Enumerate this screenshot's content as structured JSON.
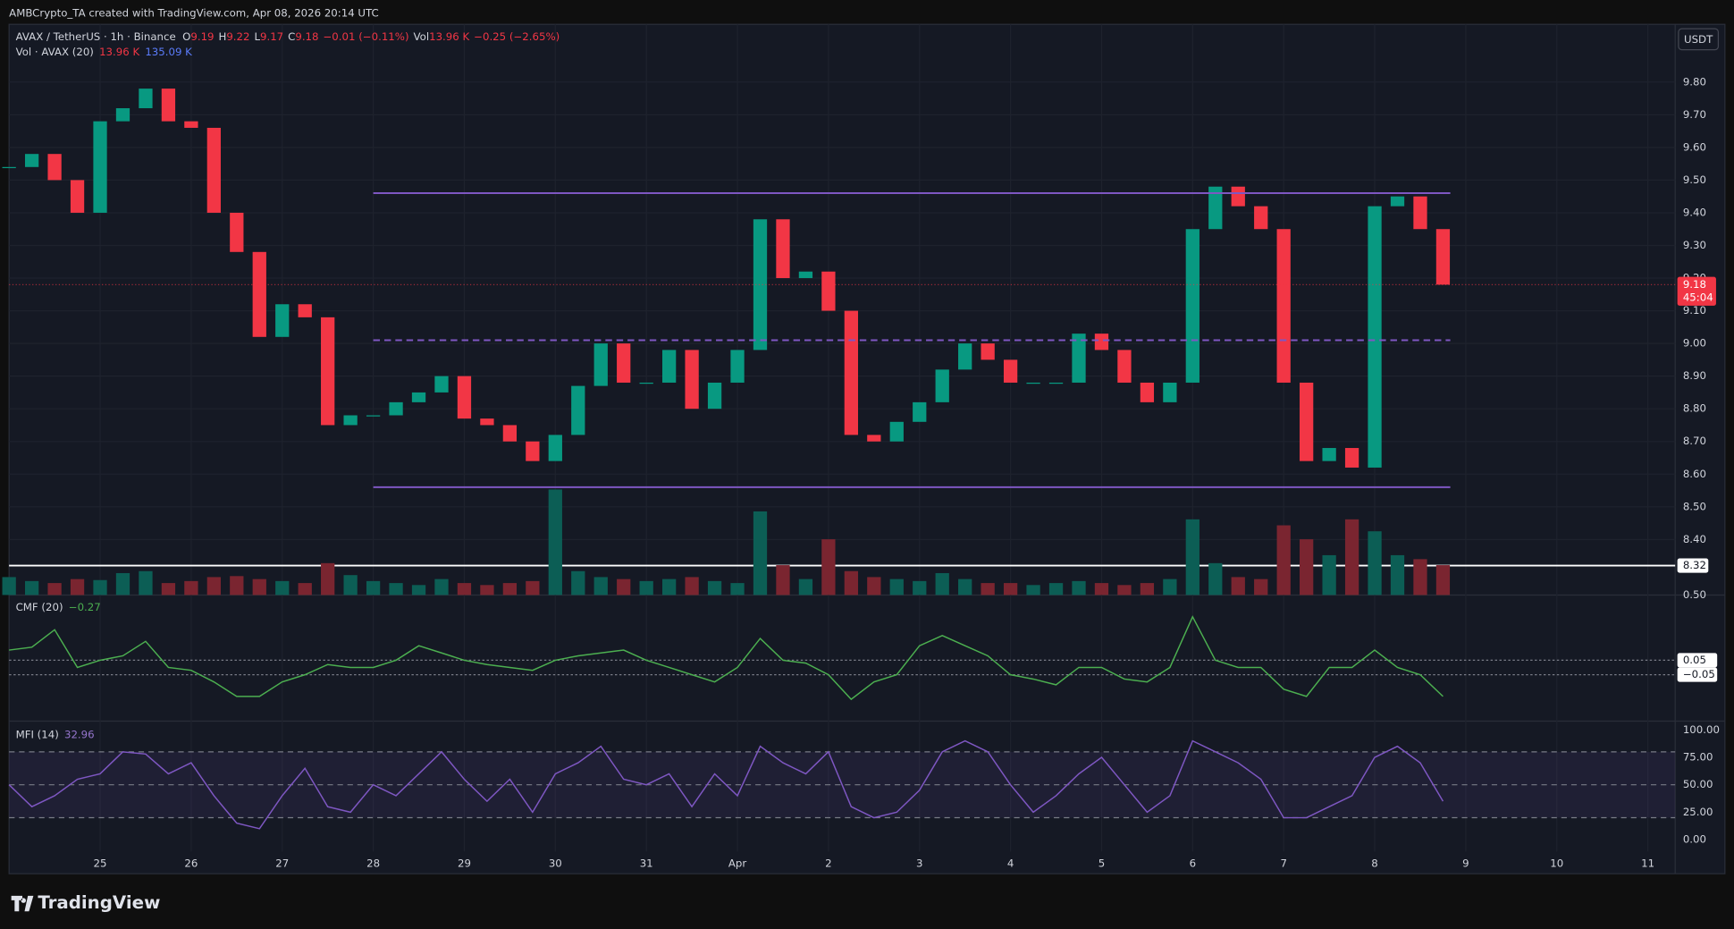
{
  "header": {
    "credit": "AMBCrypto_TA created with TradingView.com, Apr 08, 2026 20:14 UTC",
    "currency_button": "USDT",
    "brand": "TradingView"
  },
  "legend": {
    "symbol": "AVAX / TetherUS · 1h · Binance",
    "o_label": "O",
    "o": "9.19",
    "h_label": "H",
    "h": "9.22",
    "l_label": "L",
    "l": "9.17",
    "c_label": "C",
    "c": "9.18",
    "change": "−0.01 (−0.11%)",
    "vol_label": "Vol",
    "vol": "13.96 K",
    "vol_change": "−0.25 (−2.65%)",
    "vol_name": "Vol · AVAX (20)",
    "vol_value": "13.96 K",
    "vol_ma": "135.09 K",
    "cmf_name": "CMF (20)",
    "cmf_value": "−0.27",
    "mfi_name": "MFI (14)",
    "mfi_value": "32.96"
  },
  "chart_data": [
    {
      "type": "candlestick",
      "up_color": "#089981",
      "down_color": "#f23645",
      "x": [
        24,
        24.25,
        24.5,
        24.75,
        25,
        25.25,
        25.5,
        25.75,
        26,
        26.25,
        26.5,
        26.75,
        27,
        27.25,
        27.5,
        27.75,
        28,
        28.25,
        28.5,
        28.75,
        29,
        29.25,
        29.5,
        29.75,
        30,
        30.25,
        30.5,
        30.75,
        31,
        31.25,
        31.5,
        31.75,
        32,
        32.25,
        32.5,
        32.75,
        33,
        33.25,
        33.5,
        33.75,
        34,
        34.25,
        34.5,
        34.75,
        35,
        35.25,
        35.5,
        35.75,
        36,
        36.25,
        36.5,
        36.75,
        37,
        37.25,
        37.5,
        37.75,
        38,
        38.25,
        38.5,
        38.75,
        39,
        39.25,
        39.5,
        39.75
      ],
      "values": [
        9.54,
        9.58,
        9.5,
        9.4,
        9.68,
        9.72,
        9.78,
        9.68,
        9.66,
        9.4,
        9.28,
        9.02,
        9.12,
        9.08,
        8.75,
        8.78,
        8.78,
        8.82,
        8.85,
        8.9,
        8.77,
        8.75,
        8.7,
        8.64,
        8.72,
        8.87,
        9.0,
        8.88,
        8.88,
        8.98,
        8.8,
        8.88,
        8.98,
        9.38,
        9.2,
        9.22,
        9.1,
        8.72,
        8.7,
        8.76,
        8.82,
        8.92,
        9.0,
        8.95,
        8.88,
        8.88,
        8.88,
        9.03,
        8.98,
        8.88,
        8.82,
        8.88,
        9.35,
        9.48,
        9.42,
        9.35,
        8.88,
        8.64,
        8.68,
        8.62,
        9.42,
        9.45,
        9.35,
        9.18
      ],
      "xlim": [
        24.0,
        42.3
      ],
      "xticks": [
        {
          "value": 25,
          "label": "25"
        },
        {
          "value": 26,
          "label": "26"
        },
        {
          "value": 27,
          "label": "27"
        },
        {
          "value": 28,
          "label": "28"
        },
        {
          "value": 29,
          "label": "29"
        },
        {
          "value": 30,
          "label": "30"
        },
        {
          "value": 31,
          "label": "31"
        },
        {
          "value": 32,
          "label": "Apr"
        },
        {
          "value": 33,
          "label": "2"
        },
        {
          "value": 34,
          "label": "3"
        },
        {
          "value": 35,
          "label": "4"
        },
        {
          "value": 36,
          "label": "5"
        },
        {
          "value": 37,
          "label": "6"
        },
        {
          "value": 38,
          "label": "7"
        },
        {
          "value": 39,
          "label": "8"
        },
        {
          "value": 40,
          "label": "9"
        },
        {
          "value": 41,
          "label": "10"
        },
        {
          "value": 42,
          "label": "11"
        }
      ],
      "ylim": [
        8.23,
        9.97
      ],
      "yticks": [
        {
          "value": 8.4,
          "label": "8.40"
        },
        {
          "value": 8.5,
          "label": "8.50"
        },
        {
          "value": 8.6,
          "label": "8.60"
        },
        {
          "value": 8.7,
          "label": "8.70"
        },
        {
          "value": 8.8,
          "label": "8.80"
        },
        {
          "value": 8.9,
          "label": "8.90"
        },
        {
          "value": 9.0,
          "label": "9.00"
        },
        {
          "value": 9.1,
          "label": "9.10"
        },
        {
          "value": 9.2,
          "label": "9.20"
        },
        {
          "value": 9.3,
          "label": "9.30"
        },
        {
          "value": 9.4,
          "label": "9.40"
        },
        {
          "value": 9.5,
          "label": "9.50"
        },
        {
          "value": 9.6,
          "label": "9.60"
        },
        {
          "value": 9.7,
          "label": "9.70"
        },
        {
          "value": 9.8,
          "label": "9.80"
        }
      ],
      "grid": true,
      "levels": [
        {
          "value": 9.46,
          "dashed": false
        },
        {
          "value": 9.01,
          "dashed": true
        },
        {
          "value": 8.56,
          "dashed": false
        }
      ],
      "level_color": "#7e57c2",
      "level_xrange": [
        28.0,
        39.83
      ],
      "price_line": {
        "value": 8.32,
        "label": "8.32",
        "color": "#ffffff"
      },
      "last_price": {
        "value": 9.18,
        "label": "9.18",
        "color": "#f23645"
      },
      "countdown": "45:04"
    },
    {
      "type": "bar",
      "up_color": "#0c5e55",
      "down_color": "#7a2530",
      "ylim": [
        0,
        600
      ],
      "values": [
        90,
        70,
        60,
        80,
        75,
        110,
        120,
        60,
        70,
        90,
        95,
        80,
        70,
        60,
        160,
        100,
        70,
        60,
        50,
        80,
        60,
        50,
        60,
        70,
        530,
        120,
        90,
        80,
        70,
        80,
        90,
        70,
        60,
        420,
        150,
        80,
        280,
        120,
        90,
        80,
        70,
        110,
        80,
        60,
        60,
        50,
        60,
        70,
        60,
        50,
        60,
        80,
        380,
        160,
        90,
        80,
        350,
        280,
        200,
        380,
        320,
        200,
        180,
        150
      ]
    },
    {
      "type": "line",
      "color": "#4caf50",
      "ylim": [
        -0.37,
        0.5
      ],
      "yticks": [
        {
          "value": 0.5,
          "label": "0.50"
        }
      ],
      "hlines": [
        {
          "value": 0.05,
          "label": "0.05"
        },
        {
          "value": -0.05,
          "label": "−0.05"
        }
      ],
      "values": [
        0.12,
        0.14,
        0.26,
        0.0,
        0.05,
        0.08,
        0.18,
        0.0,
        -0.02,
        -0.1,
        -0.2,
        -0.2,
        -0.1,
        -0.05,
        0.02,
        0.0,
        0.0,
        0.05,
        0.15,
        0.1,
        0.05,
        0.02,
        0.0,
        -0.02,
        0.05,
        0.08,
        0.1,
        0.12,
        0.05,
        0.0,
        -0.05,
        -0.1,
        0.0,
        0.2,
        0.05,
        0.03,
        -0.05,
        -0.22,
        -0.1,
        -0.05,
        0.15,
        0.22,
        0.15,
        0.08,
        -0.05,
        -0.08,
        -0.12,
        0.0,
        0.0,
        -0.08,
        -0.1,
        0.0,
        0.35,
        0.05,
        0.0,
        0.0,
        -0.15,
        -0.2,
        0.0,
        0.0,
        0.12,
        0.0,
        -0.05,
        -0.2
      ]
    },
    {
      "type": "line",
      "color": "#7e57c2",
      "ylim": [
        -31,
        108
      ],
      "yticks": [
        {
          "value": 100,
          "label": "100.00"
        },
        {
          "value": 75,
          "label": "75.00"
        },
        {
          "value": 50,
          "label": "50.00"
        },
        {
          "value": 25,
          "label": "25.00"
        },
        {
          "value": 0,
          "label": "0.00"
        }
      ],
      "band": [
        20,
        80
      ],
      "band_color": "#7e57c2",
      "hlines": [
        {
          "value": 80
        },
        {
          "value": 50
        },
        {
          "value": 20
        }
      ],
      "values": [
        50,
        30,
        40,
        55,
        60,
        80,
        78,
        60,
        70,
        40,
        15,
        10,
        40,
        65,
        30,
        25,
        50,
        40,
        60,
        80,
        55,
        35,
        55,
        25,
        60,
        70,
        85,
        55,
        50,
        60,
        30,
        60,
        40,
        85,
        70,
        60,
        80,
        30,
        20,
        25,
        45,
        80,
        90,
        80,
        50,
        25,
        40,
        60,
        75,
        50,
        25,
        40,
        90,
        80,
        70,
        55,
        20,
        20,
        30,
        40,
        75,
        85,
        70,
        35
      ]
    }
  ]
}
